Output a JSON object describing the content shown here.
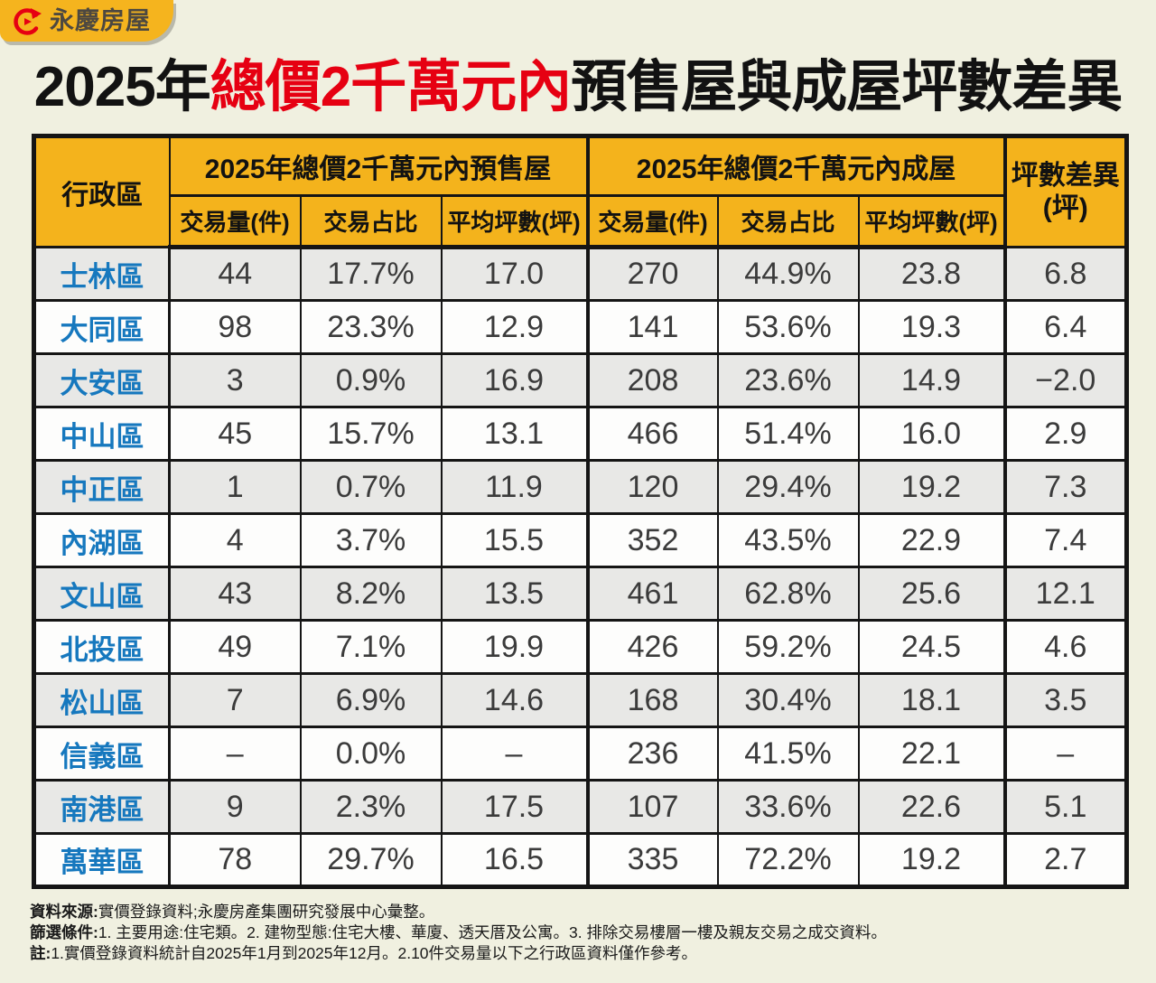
{
  "brand": {
    "name": "永慶房屋",
    "badge_bg": "#F5B41E",
    "logo_red": "#E60012",
    "text_color": "#4D4840"
  },
  "title": {
    "prefix": "2025年",
    "highlight": "總價2千萬元內",
    "suffix": "預售屋與成屋坪數差異",
    "highlight_color": "#E60012"
  },
  "table": {
    "corner_header": "行政區",
    "groups": [
      {
        "label": "2025年總價2千萬元內預售屋",
        "columns": [
          "交易量(件)",
          "交易占比",
          "平均坪數(坪)"
        ]
      },
      {
        "label": "2025年總價2千萬元內成屋",
        "columns": [
          "交易量(件)",
          "交易占比",
          "平均坪數(坪)"
        ]
      }
    ],
    "diff_header_line1": "坪數差異",
    "diff_header_line2": "(坪)",
    "rows": [
      {
        "district": "士林區",
        "cells": [
          "44",
          "17.7%",
          "17.0",
          "270",
          "44.9%",
          "23.8",
          "6.8"
        ]
      },
      {
        "district": "大同區",
        "cells": [
          "98",
          "23.3%",
          "12.9",
          "141",
          "53.6%",
          "19.3",
          "6.4"
        ]
      },
      {
        "district": "大安區",
        "cells": [
          "3",
          "0.9%",
          "16.9",
          "208",
          "23.6%",
          "14.9",
          "−2.0"
        ]
      },
      {
        "district": "中山區",
        "cells": [
          "45",
          "15.7%",
          "13.1",
          "466",
          "51.4%",
          "16.0",
          "2.9"
        ]
      },
      {
        "district": "中正區",
        "cells": [
          "1",
          "0.7%",
          "11.9",
          "120",
          "29.4%",
          "19.2",
          "7.3"
        ]
      },
      {
        "district": "內湖區",
        "cells": [
          "4",
          "3.7%",
          "15.5",
          "352",
          "43.5%",
          "22.9",
          "7.4"
        ]
      },
      {
        "district": "文山區",
        "cells": [
          "43",
          "8.2%",
          "13.5",
          "461",
          "62.8%",
          "25.6",
          "12.1"
        ]
      },
      {
        "district": "北投區",
        "cells": [
          "49",
          "7.1%",
          "19.9",
          "426",
          "59.2%",
          "24.5",
          "4.6"
        ]
      },
      {
        "district": "松山區",
        "cells": [
          "7",
          "6.9%",
          "14.6",
          "168",
          "30.4%",
          "18.1",
          "3.5"
        ]
      },
      {
        "district": "信義區",
        "cells": [
          "–",
          "0.0%",
          "–",
          "236",
          "41.5%",
          "22.1",
          "–"
        ]
      },
      {
        "district": "南港區",
        "cells": [
          "9",
          "2.3%",
          "17.5",
          "107",
          "33.6%",
          "22.6",
          "5.1"
        ]
      },
      {
        "district": "萬華區",
        "cells": [
          "78",
          "29.7%",
          "16.5",
          "335",
          "72.2%",
          "19.2",
          "2.7"
        ]
      }
    ]
  },
  "footer": {
    "source_label": "資料來源:",
    "source_text": "實價登錄資料;永慶房產集團研究發展中心彙整。",
    "filter_label": "篩選條件:",
    "filter_text": "1. 主要用途:住宅類。2. 建物型態:住宅大樓、華廈、透天厝及公寓。3. 排除交易樓層一樓及親友交易之成交資料。",
    "note_label": "註:",
    "note_text": "1.實價登錄資料統計自2025年1月到2025年12月。2.10件交易量以下之行政區資料僅作參考。"
  },
  "colors": {
    "page_bg": "#F0F0E0",
    "header_yellow": "#F4B31C",
    "row_gray": "#E8E8E6",
    "row_white": "#FDFDFC",
    "district_blue": "#1678BE",
    "border_black": "#151515",
    "value_text": "#3B3B3B"
  },
  "chart_data": {
    "type": "table",
    "title": "2025年總價2千萬元內預售屋與成屋坪數差異",
    "columns": [
      "行政區",
      "預售屋 交易量(件)",
      "預售屋 交易占比",
      "預售屋 平均坪數(坪)",
      "成屋 交易量(件)",
      "成屋 交易占比",
      "成屋 平均坪數(坪)",
      "坪數差異(坪)"
    ],
    "rows": [
      [
        "士林區",
        "44",
        "17.7%",
        "17.0",
        "270",
        "44.9%",
        "23.8",
        "6.8"
      ],
      [
        "大同區",
        "98",
        "23.3%",
        "12.9",
        "141",
        "53.6%",
        "19.3",
        "6.4"
      ],
      [
        "大安區",
        "3",
        "0.9%",
        "16.9",
        "208",
        "23.6%",
        "14.9",
        "−2.0"
      ],
      [
        "中山區",
        "45",
        "15.7%",
        "13.1",
        "466",
        "51.4%",
        "16.0",
        "2.9"
      ],
      [
        "中正區",
        "1",
        "0.7%",
        "11.9",
        "120",
        "29.4%",
        "19.2",
        "7.3"
      ],
      [
        "內湖區",
        "4",
        "3.7%",
        "15.5",
        "352",
        "43.5%",
        "22.9",
        "7.4"
      ],
      [
        "文山區",
        "43",
        "8.2%",
        "13.5",
        "461",
        "62.8%",
        "25.6",
        "12.1"
      ],
      [
        "北投區",
        "49",
        "7.1%",
        "19.9",
        "426",
        "59.2%",
        "24.5",
        "4.6"
      ],
      [
        "松山區",
        "7",
        "6.9%",
        "14.6",
        "168",
        "30.4%",
        "18.1",
        "3.5"
      ],
      [
        "信義區",
        "–",
        "0.0%",
        "–",
        "236",
        "41.5%",
        "22.1",
        "–"
      ],
      [
        "南港區",
        "9",
        "2.3%",
        "17.5",
        "107",
        "33.6%",
        "22.6",
        "5.1"
      ],
      [
        "萬華區",
        "78",
        "29.7%",
        "16.5",
        "335",
        "72.2%",
        "19.2",
        "2.7"
      ]
    ]
  }
}
